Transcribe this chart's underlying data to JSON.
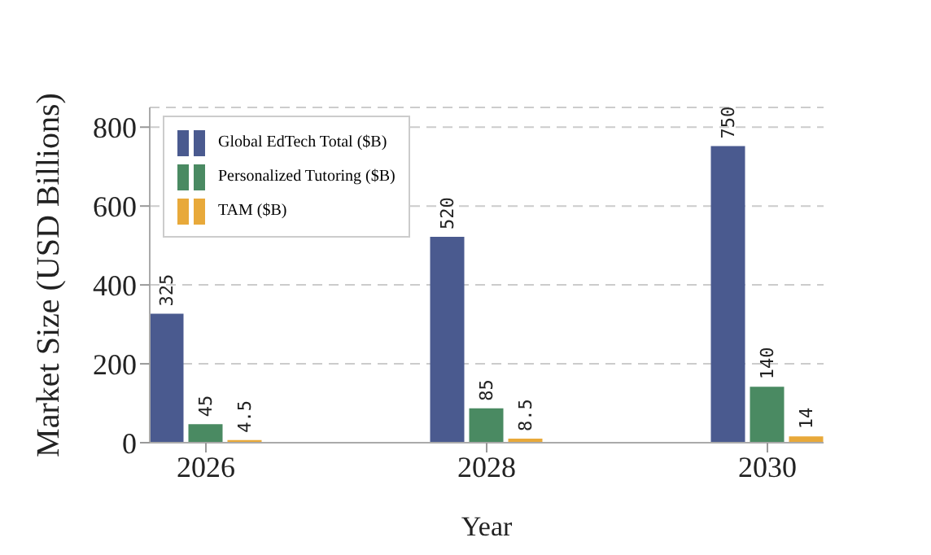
{
  "chart_data": {
    "type": "bar",
    "xlabel": "Year",
    "ylabel": "Market Size (USD Billions)",
    "x": [
      2026,
      2028,
      2030
    ],
    "series": [
      {
        "name": "Global EdTech Total ($B)",
        "color": "#4a5a8f",
        "values": [
          325,
          520,
          750
        ]
      },
      {
        "name": "Personalized Tutoring ($B)",
        "color": "#4a8a62",
        "values": [
          45,
          85,
          140
        ]
      },
      {
        "name": "TAM ($B)",
        "color": "#e8a93a",
        "values": [
          4.5,
          8.5,
          14
        ]
      }
    ],
    "xlim": [
      2025.6,
      2030.4
    ],
    "xticks": [
      2026,
      2028,
      2030
    ],
    "ylim": [
      0,
      850
    ],
    "yticks": [
      0,
      200,
      400,
      600,
      800
    ],
    "grid": "y",
    "legend": "top left",
    "data_labels": true
  }
}
